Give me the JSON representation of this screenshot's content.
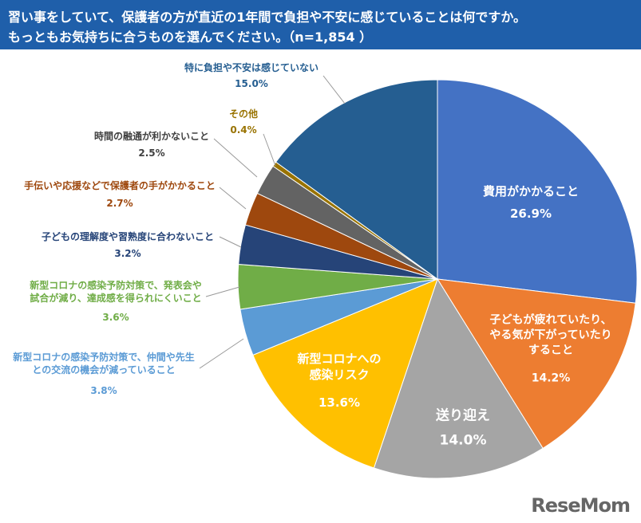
{
  "chart_data": {
    "type": "pie",
    "title": "習い事をしていて、保護者の方が直近の1年間で負担や不安に感じていることは何ですか。",
    "subtitle": "もっともお気持ちに合うものを選んでください。（n=1,854 ）",
    "categories": [
      "費用がかかること",
      "子どもが疲れていたり、やる気が下がっていたりすること",
      "送り迎え",
      "新型コロナへの感染リスク",
      "新型コロナの感染予防対策で、仲間や先生との交流の機会が減っていること",
      "新型コロナの感染予防対策で、発表会や試合が減り、達成感を得られにくいこと",
      "子どもの理解度や習熟度に合わないこと",
      "手伝いや応援などで保護者の手がかかること",
      "時間の融通が利かないこと",
      "その他",
      "特に負担や不安は感じていない"
    ],
    "values": [
      26.9,
      14.2,
      14.0,
      13.6,
      3.8,
      3.6,
      3.2,
      2.7,
      2.5,
      0.4,
      15.0
    ],
    "value_labels": [
      "26.9%",
      "14.2%",
      "14.0%",
      "13.6%",
      "3.8%",
      "3.6%",
      "3.2%",
      "2.7%",
      "2.5%",
      "0.4%",
      "15.0%"
    ],
    "colors": [
      "#4472c4",
      "#ed7d31",
      "#a5a5a5",
      "#ffc000",
      "#5b9bd5",
      "#70ad47",
      "#264478",
      "#9e480e",
      "#636363",
      "#997300",
      "#255e91"
    ],
    "logo": "ReseMom"
  }
}
